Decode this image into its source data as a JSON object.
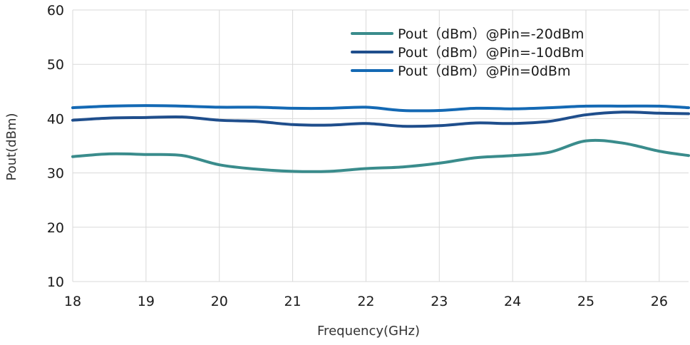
{
  "chart_data": {
    "type": "line",
    "title": "",
    "xlabel": "Frequency(GHz)",
    "ylabel": "Pout(dBm)",
    "xlim": [
      18,
      26.4
    ],
    "ylim": [
      10,
      60
    ],
    "x_ticks": [
      "18",
      "19",
      "20",
      "21",
      "22",
      "23",
      "24",
      "25",
      "26"
    ],
    "y_ticks": [
      "10",
      "20",
      "30",
      "40",
      "50",
      "60"
    ],
    "grid": true,
    "legend_position": "top-right",
    "x": [
      18,
      18.5,
      19,
      19.5,
      20,
      20.5,
      21,
      21.5,
      22,
      22.5,
      23,
      23.5,
      24,
      24.5,
      25,
      25.5,
      26,
      26.4
    ],
    "series": [
      {
        "name": "Pout（dBm）@Pin=-20dBm",
        "color": "#3a8c8c",
        "values": [
          33.0,
          33.5,
          33.4,
          33.2,
          31.5,
          30.7,
          30.3,
          30.3,
          30.8,
          31.1,
          31.8,
          32.8,
          33.2,
          33.8,
          35.9,
          35.5,
          34.0,
          33.2
        ]
      },
      {
        "name": "Pout（dBm）@Pin=-10dBm",
        "color": "#1f4e8c",
        "values": [
          39.7,
          40.1,
          40.2,
          40.3,
          39.7,
          39.5,
          38.9,
          38.8,
          39.1,
          38.6,
          38.7,
          39.2,
          39.1,
          39.5,
          40.7,
          41.2,
          41.0,
          40.9
        ]
      },
      {
        "name": "Pout（dBm）@Pin=0dBm",
        "color": "#1469b4",
        "values": [
          42.0,
          42.3,
          42.4,
          42.3,
          42.1,
          42.1,
          41.9,
          41.9,
          42.1,
          41.5,
          41.5,
          41.9,
          41.8,
          42.0,
          42.3,
          42.3,
          42.3,
          42.0
        ]
      }
    ]
  }
}
